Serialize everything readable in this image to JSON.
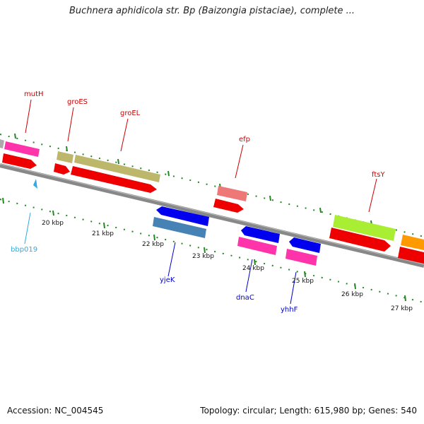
{
  "header": {
    "title": "Buchnera aphidicola str. Bp (Baizongia pistaciae), complete ..."
  },
  "footer": {
    "accession": "Accession: NC_004545",
    "topology": "Topology: circular; Length: 615,980 bp; Genes: 540"
  },
  "colors": {
    "gene_label": "#cc0000",
    "minus_label": "#0000cc",
    "misc_label": "#33aadd",
    "tick": "#228822",
    "backbone": "#888888"
  },
  "map": {
    "forward_genes": [
      {
        "name": "mutH",
        "color": "#ff33aa"
      },
      {
        "name": "groES",
        "color": "#bdb76b"
      },
      {
        "name": "groEL",
        "color": "#bdb76b"
      },
      {
        "name": "efp",
        "color": "#ee7777"
      },
      {
        "name": "ftsY",
        "color": "#aaee33"
      }
    ],
    "reverse_genes": [
      {
        "name": "yjeK",
        "color": "#0000ee"
      },
      {
        "name": "dnaC",
        "color": "#0000ee"
      },
      {
        "name": "yhhF",
        "color": "#0000ee"
      }
    ],
    "misc": [
      {
        "name": "bbp019",
        "color": "#33aadd"
      }
    ],
    "ticks": [
      "20 kbp",
      "21 kbp",
      "22 kbp",
      "23 kbp",
      "24 kbp",
      "25 kbp",
      "26 kbp",
      "27 kbp"
    ]
  }
}
